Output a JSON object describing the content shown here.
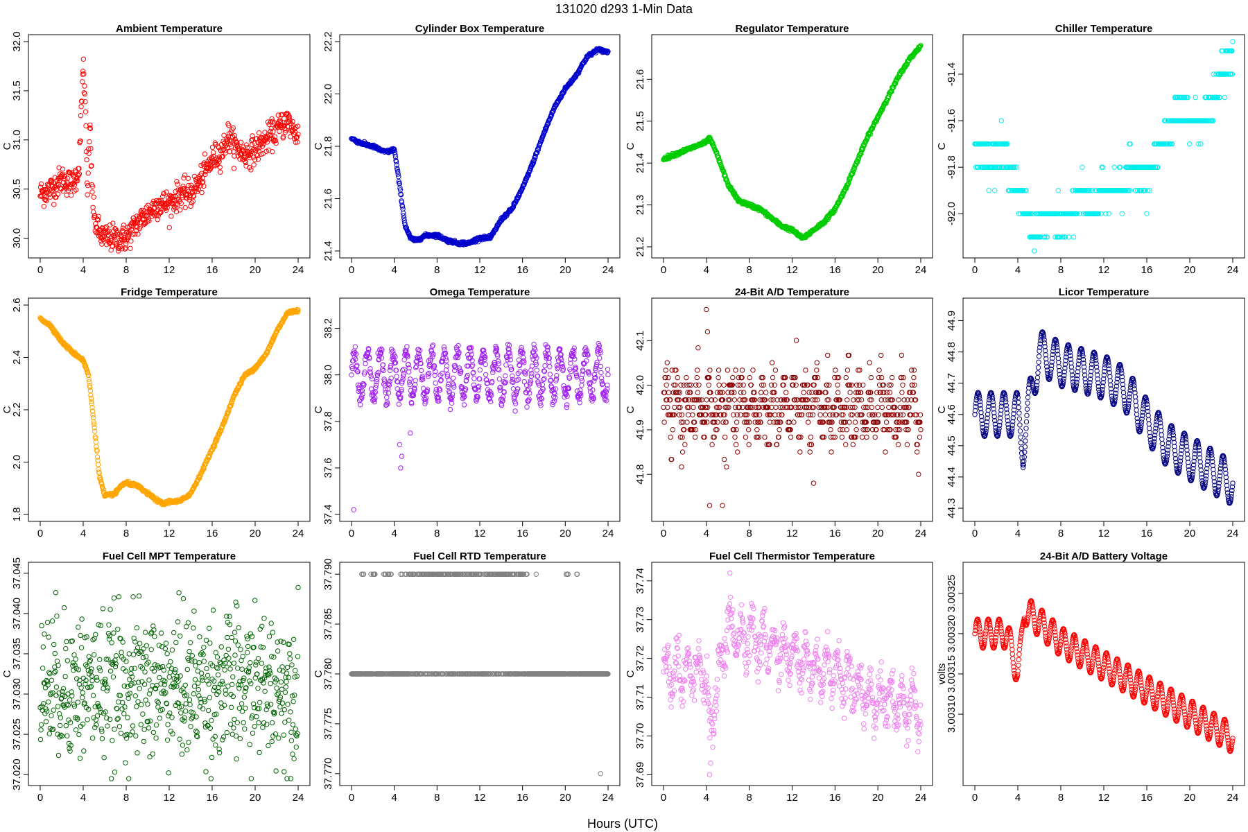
{
  "figure": {
    "title": "131020    d293    1-Min Data",
    "xlabel": "Hours (UTC)"
  },
  "chart_data": [
    {
      "type": "scatter",
      "title": "Ambient Temperature",
      "ylabel": "C",
      "color": "#ff0000",
      "xlim": [
        0,
        24
      ],
      "ylim": [
        29.87,
        32.0
      ],
      "xticks": [
        "0",
        "4",
        "8",
        "12",
        "16",
        "20",
        "24"
      ],
      "yticks": [
        "30.0",
        "30.5",
        "31.0",
        "31.5",
        "32.0"
      ],
      "x": [
        0,
        1,
        2,
        3,
        3.6,
        3.8,
        4.0,
        4.2,
        4.4,
        4.6,
        4.8,
        5.0,
        5.5,
        6.0,
        7.0,
        8.0,
        9.0,
        10.0,
        11.0,
        12.0,
        13.0,
        14.0,
        15.0,
        16.0,
        17.0,
        17.5,
        18.0,
        19.0,
        20.0,
        21.0,
        22.0,
        22.5,
        23.0,
        23.5,
        24.0
      ],
      "y": [
        30.45,
        30.5,
        30.6,
        30.55,
        30.7,
        31.2,
        31.8,
        31.3,
        30.4,
        31.2,
        30.6,
        30.2,
        30.05,
        30.0,
        30.0,
        30.0,
        30.15,
        30.25,
        30.35,
        30.35,
        30.45,
        30.45,
        30.6,
        30.8,
        30.9,
        31.05,
        30.95,
        30.85,
        30.9,
        31.0,
        31.1,
        31.15,
        31.2,
        31.1,
        31.05
      ],
      "noise": 0.07
    },
    {
      "type": "scatter",
      "title": "Cylinder Box Temperature",
      "ylabel": "C",
      "color": "#0000cd",
      "xlim": [
        0,
        24
      ],
      "ylim": [
        21.4,
        22.2
      ],
      "xticks": [
        "0",
        "4",
        "8",
        "12",
        "16",
        "20",
        "24"
      ],
      "yticks": [
        "21.4",
        "21.6",
        "21.8",
        "22.0",
        "22.2"
      ],
      "x": [
        0,
        1,
        2,
        3,
        3.5,
        4.0,
        4.5,
        5.0,
        5.5,
        6.0,
        7.0,
        8.0,
        9.0,
        10.0,
        11.0,
        12.0,
        13.0,
        14.0,
        15.0,
        16.0,
        17.0,
        18.0,
        19.0,
        20.0,
        21.0,
        22.0,
        23.0,
        24.0
      ],
      "y": [
        21.83,
        21.81,
        21.8,
        21.78,
        21.78,
        21.79,
        21.65,
        21.5,
        21.45,
        21.44,
        21.46,
        21.46,
        21.44,
        21.43,
        21.43,
        21.45,
        21.45,
        21.52,
        21.56,
        21.64,
        21.74,
        21.85,
        21.95,
        22.02,
        22.07,
        22.14,
        22.17,
        22.16
      ],
      "noise": 0.003
    },
    {
      "type": "scatter",
      "title": "Regulator Temperature",
      "ylabel": "C",
      "color": "#00cc00",
      "xlim": [
        0,
        24
      ],
      "ylim": [
        21.19,
        21.69
      ],
      "xticks": [
        "0",
        "4",
        "8",
        "12",
        "16",
        "20",
        "24"
      ],
      "yticks": [
        "21.2",
        "21.3",
        "21.4",
        "21.5",
        "21.6"
      ],
      "x": [
        0,
        1,
        2,
        3,
        4.0,
        4.3,
        5.0,
        6.0,
        7.0,
        8.0,
        9.0,
        10.0,
        11.0,
        12.0,
        13.0,
        14.0,
        15.0,
        16.0,
        17.0,
        18.0,
        19.0,
        20.0,
        21.0,
        22.0,
        23.0,
        24.0
      ],
      "y": [
        21.41,
        21.42,
        21.43,
        21.44,
        21.45,
        21.46,
        21.42,
        21.35,
        21.31,
        21.3,
        21.29,
        21.27,
        21.25,
        21.24,
        21.22,
        21.24,
        21.26,
        21.29,
        21.34,
        21.4,
        21.46,
        21.51,
        21.56,
        21.61,
        21.65,
        21.68
      ],
      "noise": 0.002
    },
    {
      "type": "scatter",
      "title": "Chiller Temperature",
      "ylabel": "C",
      "color": "#00eeee",
      "xlim": [
        0,
        24
      ],
      "ylim": [
        -92.16,
        -91.26
      ],
      "xticks": [
        "0",
        "4",
        "8",
        "12",
        "16",
        "20",
        "24"
      ],
      "yticks": [
        "-92.0",
        "-91.8",
        "-91.6",
        "-91.4"
      ],
      "x": [
        0,
        1,
        2,
        3,
        4,
        5,
        5.5,
        6,
        7,
        8,
        9,
        10,
        11,
        12,
        13,
        14,
        15,
        16,
        17,
        18,
        19,
        20,
        21,
        22,
        23,
        24
      ],
      "y": [
        -91.7,
        -91.75,
        -91.75,
        -91.75,
        -91.9,
        -92.0,
        -92.1,
        -92.05,
        -92.0,
        -92.05,
        -92.0,
        -91.9,
        -92.0,
        -91.9,
        -91.9,
        -91.85,
        -91.8,
        -91.85,
        -91.75,
        -91.65,
        -91.55,
        -91.6,
        -91.6,
        -91.55,
        -91.4,
        -91.3
      ],
      "quantize": 0.1,
      "noise": 0.04
    },
    {
      "type": "scatter",
      "title": "Fridge Temperature",
      "ylabel": "C",
      "color": "#ffa500",
      "xlim": [
        0,
        24
      ],
      "ylim": [
        1.8,
        2.6
      ],
      "xticks": [
        "0",
        "4",
        "8",
        "12",
        "16",
        "20",
        "24"
      ],
      "yticks": [
        "1.8",
        "2.0",
        "2.2",
        "2.4",
        "2.6"
      ],
      "x": [
        0,
        1,
        2,
        3,
        4,
        4.5,
        5,
        5.5,
        6,
        7,
        7.5,
        8,
        9,
        10,
        11,
        11.5,
        12,
        13,
        14,
        15,
        16,
        17,
        18,
        19,
        20,
        21,
        22,
        23,
        24
      ],
      "y": [
        2.55,
        2.52,
        2.46,
        2.42,
        2.39,
        2.33,
        2.15,
        1.95,
        1.87,
        1.88,
        1.91,
        1.92,
        1.91,
        1.88,
        1.85,
        1.84,
        1.85,
        1.85,
        1.88,
        1.96,
        2.05,
        2.14,
        2.25,
        2.33,
        2.36,
        2.41,
        2.5,
        2.57,
        2.58
      ],
      "noise": 0.003
    },
    {
      "type": "scatter",
      "title": "Omega Temperature",
      "ylabel": "C",
      "color": "#a020f0",
      "xlim": [
        0,
        24
      ],
      "ylim": [
        37.4,
        38.3
      ],
      "xticks": [
        "0",
        "4",
        "8",
        "12",
        "16",
        "20",
        "24"
      ],
      "yticks": [
        "37.4",
        "37.6",
        "37.8",
        "38.0",
        "38.2"
      ],
      "base": 38.0,
      "amp": 0.1,
      "period": 1.2,
      "noise": 0.02,
      "extras": {
        "x": [
          0.2,
          4.6,
          4.5,
          4.7,
          5.5
        ],
        "y": [
          37.42,
          37.6,
          37.7,
          37.65,
          37.75
        ]
      }
    },
    {
      "type": "scatter",
      "title": "24-Bit A/D Temperature",
      "ylabel": "C",
      "color": "#8b0000",
      "xlim": [
        0,
        24
      ],
      "ylim": [
        41.71,
        42.18
      ],
      "xticks": [
        "0",
        "4",
        "8",
        "12",
        "16",
        "20",
        "24"
      ],
      "yticks": [
        "41.8",
        "41.9",
        "42.0",
        "42.1"
      ],
      "base": 41.95,
      "amp": 0.04,
      "period": 1.0,
      "noise": 0.035,
      "quantize": 0.0167,
      "extras": {
        "x": [
          4.0,
          4.1,
          4.3,
          5.5,
          14.0
        ],
        "y": [
          42.17,
          42.12,
          41.73,
          41.73,
          41.78
        ]
      }
    },
    {
      "type": "scatter",
      "title": "Licor Temperature",
      "ylabel": "C",
      "color": "#000080",
      "xlim": [
        0,
        24
      ],
      "ylim": [
        44.28,
        44.95
      ],
      "xticks": [
        "0",
        "4",
        "8",
        "12",
        "16",
        "20",
        "24"
      ],
      "yticks": [
        "44.3",
        "44.4",
        "44.5",
        "44.6",
        "44.7",
        "44.8",
        "44.9"
      ],
      "trend_x": [
        0,
        4,
        4.5,
        5,
        6,
        8,
        10,
        12,
        14,
        16,
        18,
        20,
        22,
        24
      ],
      "trend_y": [
        44.6,
        44.6,
        44.5,
        44.62,
        44.8,
        44.76,
        44.74,
        44.72,
        44.68,
        44.58,
        44.5,
        44.46,
        44.42,
        44.38
      ],
      "amp": 0.07,
      "period": 1.2,
      "noise": 0.0
    },
    {
      "type": "scatter",
      "title": "Fuel Cell MPT Temperature",
      "ylabel": "C",
      "color": "#006400",
      "xlim": [
        0,
        24
      ],
      "ylim": [
        37.0195,
        37.0455
      ],
      "xticks": [
        "0",
        "4",
        "8",
        "12",
        "16",
        "20",
        "24"
      ],
      "yticks": [
        "37.020",
        "37.025",
        "37.030",
        "37.035",
        "37.040",
        "37.045"
      ],
      "base": 37.031,
      "amp": 0.0,
      "period": 1.0,
      "noise": 0.0045
    },
    {
      "type": "scatter",
      "title": "Fuel Cell RTD Temperature",
      "ylabel": "C",
      "color": "#808080",
      "xlim": [
        0,
        24
      ],
      "ylim": [
        37.7695,
        37.7905
      ],
      "xticks": [
        "0",
        "4",
        "8",
        "12",
        "16",
        "20",
        "24"
      ],
      "yticks": [
        "37.770",
        "37.775",
        "37.780",
        "37.785",
        "37.790"
      ],
      "base": 37.78,
      "amp": 0.0,
      "period": 1.0,
      "noise": 0.0,
      "upper_level": 37.79,
      "upper_ranges": [
        [
          0.8,
          1.2
        ],
        [
          1.8,
          2.2
        ],
        [
          3.0,
          3.8
        ],
        [
          4.5,
          4.9
        ],
        [
          5.0,
          16.5
        ],
        [
          17.0,
          17.3
        ],
        [
          20.0,
          20.3
        ],
        [
          21.0,
          21.2
        ]
      ],
      "extras": {
        "x": [
          23.3
        ],
        "y": [
          37.77
        ]
      }
    },
    {
      "type": "scatter",
      "title": "Fuel Cell Thermistor Temperature",
      "ylabel": "C",
      "color": "#ee82ee",
      "xlim": [
        0,
        24
      ],
      "ylim": [
        37.689,
        37.743
      ],
      "xticks": [
        "0",
        "4",
        "8",
        "12",
        "16",
        "20",
        "24"
      ],
      "yticks": [
        "37.69",
        "37.70",
        "37.71",
        "37.72",
        "37.73",
        "37.74"
      ],
      "trend_x": [
        0,
        4,
        4.3,
        5,
        6,
        8,
        10,
        12,
        14,
        16,
        18,
        20,
        22,
        24
      ],
      "trend_y": [
        37.717,
        37.717,
        37.7,
        37.714,
        37.728,
        37.725,
        37.723,
        37.72,
        37.718,
        37.716,
        37.712,
        37.71,
        37.708,
        37.706
      ],
      "amp": 0.005,
      "period": 1.0,
      "noise": 0.0025,
      "extras": {
        "x": [
          4.3,
          6.2,
          4.4
        ],
        "y": [
          37.69,
          37.742,
          37.693
        ]
      }
    },
    {
      "type": "scatter",
      "title": "24-Bit A/D Battery Voltage",
      "ylabel": "volts",
      "color": "#ff0000",
      "xlim": [
        0,
        24
      ],
      "ylim": [
        3.00302,
        3.00328
      ],
      "xticks": [
        "0",
        "4",
        "8",
        "12",
        "16",
        "20",
        "24"
      ],
      "yticks": [
        "3.00310",
        "3.00315",
        "3.00320",
        "3.00325"
      ],
      "trend_x": [
        0,
        3,
        4,
        4.3,
        4.6,
        5.5,
        8,
        12,
        16,
        20,
        24
      ],
      "trend_y": [
        3.0032,
        3.0032,
        3.00315,
        3.00318,
        3.00323,
        3.00322,
        3.00319,
        3.00316,
        3.00313,
        3.0031,
        3.00307
      ],
      "amp": 1.8e-05,
      "period": 1.0,
      "noise": 0.0
    }
  ]
}
